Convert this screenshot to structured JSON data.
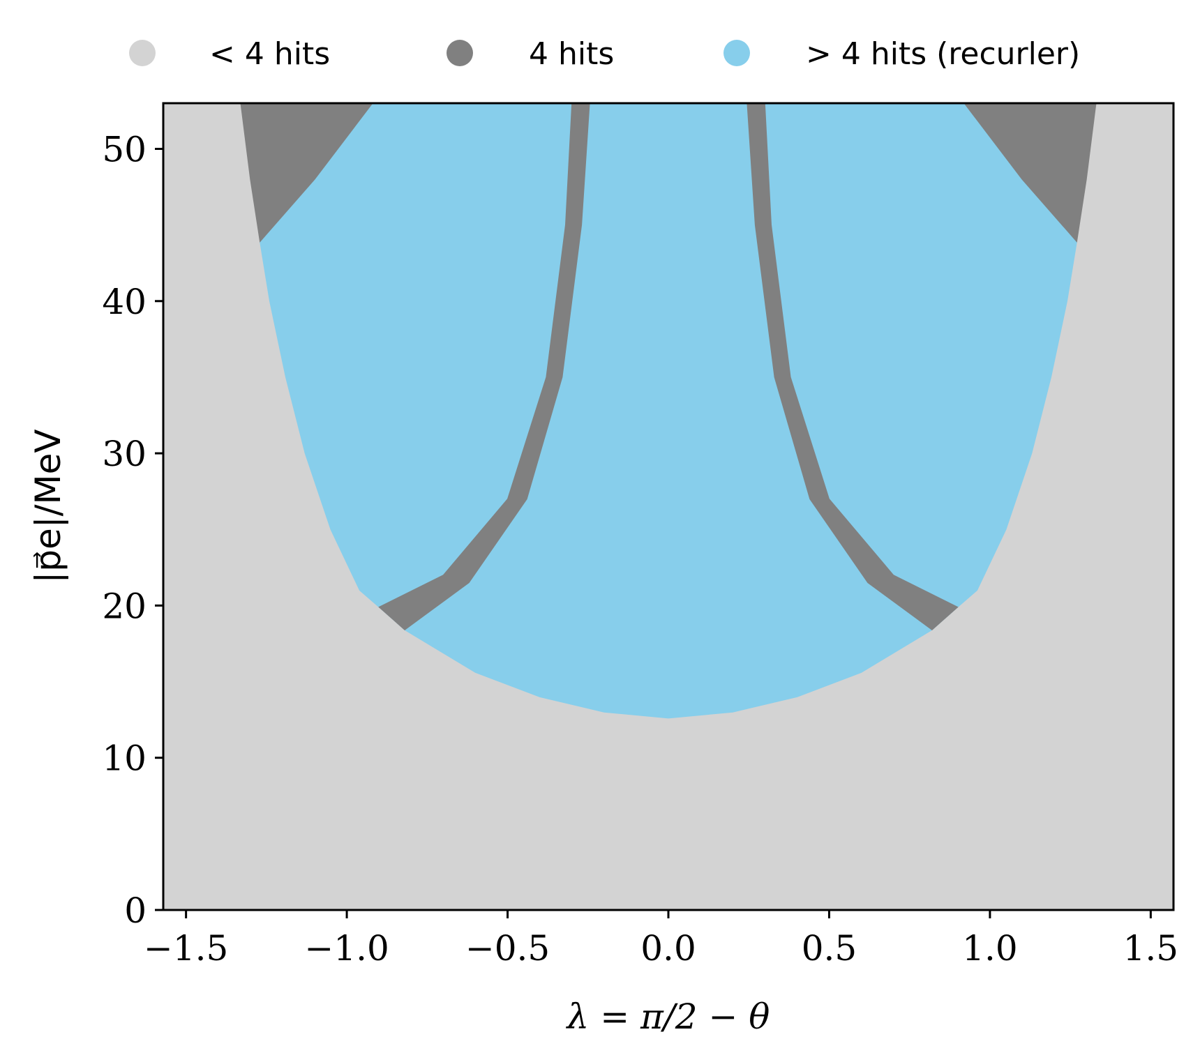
{
  "chart_data": {
    "type": "area",
    "title": "",
    "xlabel": "λ = π/2 − θ",
    "ylabel": "|p⃗e|/MeV",
    "xlim": [
      -1.5708,
      1.5708
    ],
    "ylim": [
      0,
      53
    ],
    "x_ticks": [
      -1.5,
      -1.0,
      -0.5,
      0.0,
      0.5,
      1.0,
      1.5
    ],
    "x_tick_labels": [
      "−1.5",
      "−1.0",
      "−0.5",
      "0.0",
      "0.5",
      "1.0",
      "1.5"
    ],
    "y_ticks": [
      0,
      10,
      20,
      30,
      40,
      50
    ],
    "y_tick_labels": [
      "0",
      "10",
      "20",
      "30",
      "40",
      "50"
    ],
    "grid": false,
    "legend_position": "top, outside plot",
    "legend": [
      {
        "label": "< 4 hits",
        "color": "#d3d3d3"
      },
      {
        "label": "4 hits",
        "color": "#808080"
      },
      {
        "label": "> 4 hits (recurler)",
        "color": "#87ceeb"
      }
    ],
    "regions": [
      {
        "name": "< 4 hits",
        "color": "#d3d3d3",
        "note": "fills the whole parameter space outside the other regions",
        "bounds": [
          [
            -1.5708,
            0
          ],
          [
            1.5708,
            0
          ],
          [
            1.5708,
            53
          ],
          [
            -1.5708,
            53
          ]
        ]
      },
      {
        "name": "> 4 hits (recurler)",
        "color": "#87ceeb",
        "bounds": [
          [
            -1.27,
            43.9
          ],
          [
            -1.24,
            40
          ],
          [
            -1.19,
            35
          ],
          [
            -1.13,
            30
          ],
          [
            -1.05,
            25
          ],
          [
            -0.96,
            21
          ],
          [
            -0.9,
            19.9
          ],
          [
            -0.82,
            18.4
          ],
          [
            -0.6,
            15.6
          ],
          [
            -0.4,
            14.0
          ],
          [
            -0.2,
            13.0
          ],
          [
            0.0,
            12.6
          ],
          [
            0.2,
            13.0
          ],
          [
            0.4,
            14.0
          ],
          [
            0.6,
            15.6
          ],
          [
            0.82,
            18.4
          ],
          [
            0.9,
            19.9
          ],
          [
            0.96,
            21
          ],
          [
            1.05,
            25
          ],
          [
            1.13,
            30
          ],
          [
            1.19,
            35
          ],
          [
            1.24,
            40
          ],
          [
            1.27,
            43.9
          ],
          [
            1.1,
            48
          ],
          [
            0.92,
            53
          ],
          [
            -0.92,
            53
          ],
          [
            -1.1,
            48
          ]
        ]
      },
      {
        "name": "4 hits",
        "color": "#808080",
        "part": "upper-left corner",
        "bounds": [
          [
            -1.33,
            53
          ],
          [
            -1.3,
            48
          ],
          [
            -1.27,
            43.9
          ],
          [
            -1.1,
            48
          ],
          [
            -0.92,
            53
          ]
        ]
      },
      {
        "name": "4 hits",
        "color": "#808080",
        "part": "upper-right corner",
        "bounds": [
          [
            1.33,
            53
          ],
          [
            0.92,
            53
          ],
          [
            1.1,
            48
          ],
          [
            1.27,
            43.9
          ],
          [
            1.3,
            48
          ]
        ]
      },
      {
        "name": "4 hits",
        "color": "#808080",
        "part": "left band",
        "bounds": [
          [
            -0.9,
            19.9
          ],
          [
            -0.7,
            22
          ],
          [
            -0.5,
            27
          ],
          [
            -0.38,
            35
          ],
          [
            -0.32,
            45
          ],
          [
            -0.3,
            53
          ],
          [
            -0.245,
            53
          ],
          [
            -0.27,
            45
          ],
          [
            -0.33,
            35
          ],
          [
            -0.44,
            27
          ],
          [
            -0.62,
            21.5
          ],
          [
            -0.82,
            18.4
          ]
        ]
      },
      {
        "name": "4 hits",
        "color": "#808080",
        "part": "right band",
        "bounds": [
          [
            0.9,
            19.9
          ],
          [
            0.82,
            18.4
          ],
          [
            0.62,
            21.5
          ],
          [
            0.44,
            27
          ],
          [
            0.33,
            35
          ],
          [
            0.27,
            45
          ],
          [
            0.245,
            53
          ],
          [
            0.3,
            53
          ],
          [
            0.32,
            45
          ],
          [
            0.38,
            35
          ],
          [
            0.5,
            27
          ],
          [
            0.7,
            22
          ]
        ]
      }
    ]
  }
}
